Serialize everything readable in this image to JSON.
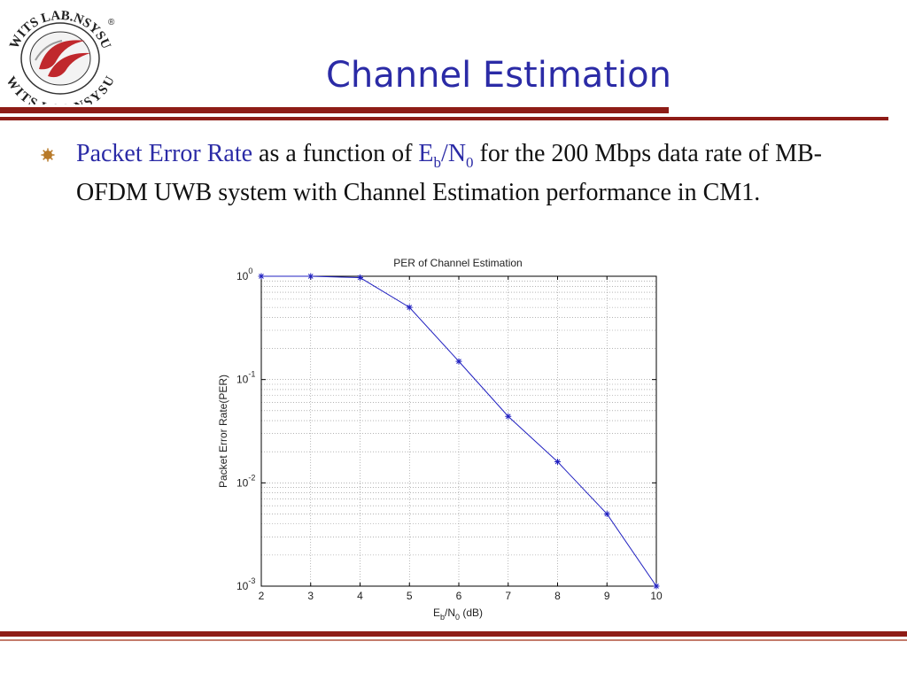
{
  "logo": {
    "text_top": "WITS LAB.NSYSU",
    "text_bottom": "WITS LAB.NSYSU",
    "registered": "®",
    "icon": "wits-lab-logo-icon"
  },
  "slide": {
    "title": "Channel Estimation",
    "bullet": {
      "icon": "bullet-icon",
      "highlight": "Packet Error Rate",
      "t1": " as a function of ",
      "eb_main": "E",
      "eb_sub": "b",
      "slash": "/",
      "n0_main": "N",
      "n0_sub": "0",
      "t2": " for the 200 Mbps data rate of MB-OFDM UWB system with Channel Estimation performance in CM1."
    }
  },
  "colors": {
    "title": "#2b2ba6",
    "rule": "#8e1c16",
    "series": "#2020c0"
  },
  "chart_data": {
    "type": "line",
    "title": "PER of Channel Estimation",
    "xlabel_main": "E",
    "xlabel_sub1": "b",
    "xlabel_mid": "/N",
    "xlabel_sub2": "0",
    "xlabel_tail": " (dB)",
    "ylabel": "Packet Error Rate(PER)",
    "x": [
      2,
      3,
      4,
      5,
      6,
      7,
      8,
      9,
      10
    ],
    "xlim": [
      2,
      10
    ],
    "y_scale": "log",
    "ylim": [
      0.001,
      1
    ],
    "grid": true,
    "ytick_labels": [
      {
        "base": "10",
        "exp": "0",
        "value": 1
      },
      {
        "base": "10",
        "exp": "-1",
        "value": 0.1
      },
      {
        "base": "10",
        "exp": "-2",
        "value": 0.01
      },
      {
        "base": "10",
        "exp": "-3",
        "value": 0.001
      }
    ],
    "xtick_labels": [
      "2",
      "3",
      "4",
      "5",
      "6",
      "7",
      "8",
      "9",
      "10"
    ],
    "series": [
      {
        "marker": "*",
        "values": [
          1.0,
          1.0,
          0.97,
          0.5,
          0.15,
          0.044,
          0.016,
          0.005,
          0.001
        ]
      }
    ]
  }
}
